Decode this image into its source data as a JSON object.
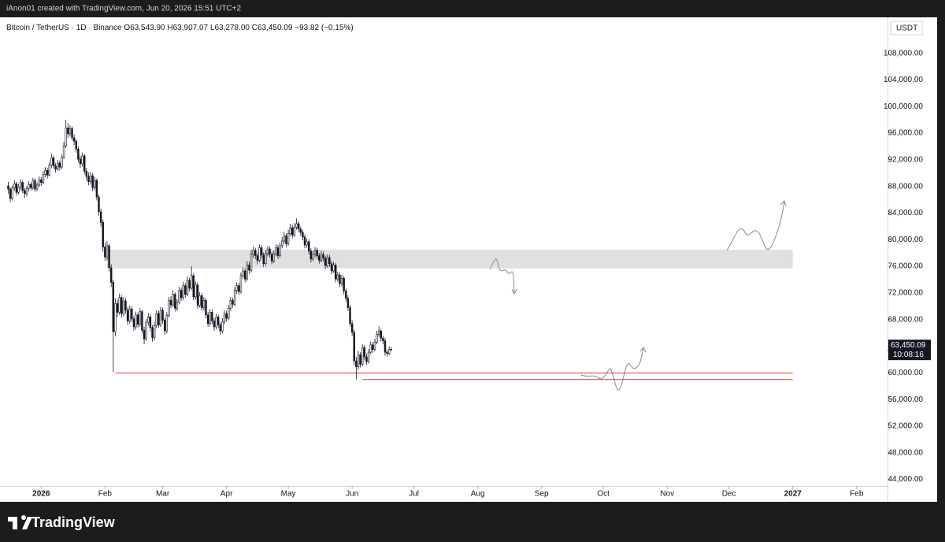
{
  "header": "iAnon01 created with TradingView.com, Jun 20, 2026 15:51 UTC+2",
  "footer": "TradingView",
  "chart_data": {
    "type": "candlestick",
    "legend": [
      "Bitcoin / TetherUS · 1D · Binance",
      "O63,543.90",
      "H63,907.07",
      "L63,278.00",
      "C63,450.09",
      "−93.82 (−0.15%)"
    ],
    "currency": "USDT",
    "start": "2025-12-16",
    "ohlc": [
      [
        88100,
        88700,
        86900,
        87600
      ],
      [
        87600,
        87900,
        85600,
        86200
      ],
      [
        86200,
        88200,
        85900,
        87800
      ],
      [
        87800,
        88900,
        87300,
        88400
      ],
      [
        88400,
        88700,
        86600,
        87100
      ],
      [
        87100,
        88400,
        86800,
        87900
      ],
      [
        87900,
        89100,
        87500,
        88600
      ],
      [
        88600,
        88900,
        87000,
        87400
      ],
      [
        87400,
        87800,
        86300,
        86900
      ],
      [
        86900,
        88100,
        86500,
        87700
      ],
      [
        87700,
        88800,
        87300,
        88300
      ],
      [
        88300,
        88600,
        87400,
        87800
      ],
      [
        87800,
        89300,
        87500,
        88900
      ],
      [
        88900,
        89200,
        87200,
        87600
      ],
      [
        87600,
        88600,
        87300,
        88200
      ],
      [
        88200,
        89500,
        87900,
        89000
      ],
      [
        89000,
        89400,
        88100,
        88600
      ],
      [
        88600,
        90300,
        88300,
        89800
      ],
      [
        89800,
        90900,
        89400,
        90400
      ],
      [
        90400,
        90800,
        89200,
        89700
      ],
      [
        89700,
        91700,
        89500,
        91200
      ],
      [
        91200,
        92900,
        90800,
        92300
      ],
      [
        92300,
        92600,
        90700,
        91100
      ],
      [
        91100,
        91500,
        90100,
        90600
      ],
      [
        90600,
        92000,
        90300,
        91500
      ],
      [
        91500,
        91900,
        90400,
        90900
      ],
      [
        90900,
        92800,
        90600,
        92400
      ],
      [
        92400,
        94700,
        92100,
        94100
      ],
      [
        94100,
        98000,
        93800,
        96800
      ],
      [
        96800,
        97500,
        95300,
        95900
      ],
      [
        95900,
        97200,
        95500,
        96700
      ],
      [
        96700,
        97000,
        94900,
        95300
      ],
      [
        95300,
        95800,
        94200,
        94800
      ],
      [
        94800,
        95100,
        93100,
        93600
      ],
      [
        93600,
        94000,
        91600,
        92100
      ],
      [
        92100,
        92600,
        90800,
        91400
      ],
      [
        91400,
        93100,
        91000,
        92600
      ],
      [
        92600,
        92900,
        89800,
        90300
      ],
      [
        90300,
        90800,
        88900,
        89500
      ],
      [
        89500,
        90100,
        88200,
        88700
      ],
      [
        88700,
        90200,
        88300,
        89600
      ],
      [
        89600,
        90000,
        87300,
        87800
      ],
      [
        87800,
        89400,
        87400,
        88900
      ],
      [
        88900,
        89200,
        85900,
        86400
      ],
      [
        86400,
        86800,
        83600,
        84200
      ],
      [
        84200,
        84700,
        82000,
        82600
      ],
      [
        82600,
        83000,
        78200,
        78900
      ],
      [
        78900,
        79600,
        76800,
        77400
      ],
      [
        77400,
        79800,
        76900,
        79100
      ],
      [
        79100,
        79400,
        75200,
        75800
      ],
      [
        75800,
        76300,
        72900,
        73600
      ],
      [
        73600,
        74000,
        60100,
        66200
      ],
      [
        66200,
        71200,
        65500,
        70400
      ],
      [
        70400,
        71000,
        68400,
        69100
      ],
      [
        69100,
        71900,
        68700,
        71300
      ],
      [
        71300,
        71700,
        68300,
        68900
      ],
      [
        68900,
        71400,
        68500,
        70800
      ],
      [
        70800,
        71200,
        68900,
        69400
      ],
      [
        69400,
        69900,
        67200,
        67800
      ],
      [
        67800,
        70100,
        67400,
        69600
      ],
      [
        69600,
        70000,
        67600,
        68100
      ],
      [
        68100,
        68500,
        66300,
        66900
      ],
      [
        66900,
        69200,
        66500,
        68700
      ],
      [
        68700,
        69100,
        66800,
        67300
      ],
      [
        67300,
        69700,
        66900,
        69200
      ],
      [
        69200,
        69500,
        65900,
        66400
      ],
      [
        66400,
        66900,
        64300,
        65100
      ],
      [
        65100,
        68100,
        64800,
        67600
      ],
      [
        67600,
        69000,
        67100,
        68400
      ],
      [
        68400,
        68800,
        66200,
        66800
      ],
      [
        66800,
        67200,
        64700,
        65300
      ],
      [
        65300,
        67600,
        64900,
        67100
      ],
      [
        67100,
        69400,
        66700,
        68900
      ],
      [
        68900,
        69300,
        66800,
        67200
      ],
      [
        67200,
        69900,
        66900,
        69400
      ],
      [
        69400,
        69800,
        67400,
        67900
      ],
      [
        67900,
        68300,
        65700,
        66300
      ],
      [
        66300,
        69100,
        65900,
        68600
      ],
      [
        68600,
        71400,
        68300,
        70900
      ],
      [
        70900,
        71500,
        69700,
        70200
      ],
      [
        70200,
        72400,
        69900,
        71800
      ],
      [
        71800,
        72100,
        69200,
        69700
      ],
      [
        69700,
        71100,
        69300,
        70600
      ],
      [
        70600,
        72900,
        70300,
        72400
      ],
      [
        72400,
        72800,
        70800,
        71300
      ],
      [
        71300,
        73700,
        70900,
        73100
      ],
      [
        73100,
        73500,
        71300,
        71800
      ],
      [
        71800,
        74500,
        71500,
        73900
      ],
      [
        73900,
        74300,
        72200,
        72700
      ],
      [
        72700,
        76000,
        72400,
        74600
      ],
      [
        74600,
        75000,
        70900,
        71400
      ],
      [
        71400,
        73700,
        71000,
        73200
      ],
      [
        73200,
        73600,
        69600,
        70100
      ],
      [
        70100,
        72100,
        69800,
        71600
      ],
      [
        71600,
        72000,
        69300,
        69800
      ],
      [
        69800,
        71400,
        69400,
        70900
      ],
      [
        70900,
        71200,
        68200,
        68700
      ],
      [
        68700,
        69100,
        66900,
        67400
      ],
      [
        67400,
        69600,
        67000,
        69100
      ],
      [
        69100,
        69500,
        67300,
        67800
      ],
      [
        67800,
        68200,
        66300,
        66900
      ],
      [
        66900,
        68900,
        66500,
        68400
      ],
      [
        68400,
        68800,
        66700,
        67200
      ],
      [
        67200,
        67600,
        65700,
        66300
      ],
      [
        66300,
        68200,
        65900,
        67700
      ],
      [
        67700,
        69400,
        67300,
        68900
      ],
      [
        68900,
        69300,
        67700,
        68200
      ],
      [
        68200,
        70200,
        67900,
        69700
      ],
      [
        69700,
        71400,
        69300,
        70900
      ],
      [
        70900,
        71300,
        69800,
        70300
      ],
      [
        70300,
        72900,
        70000,
        72400
      ],
      [
        72400,
        73600,
        71900,
        73100
      ],
      [
        73100,
        73500,
        71700,
        72200
      ],
      [
        72200,
        75100,
        71900,
        74600
      ],
      [
        74600,
        75900,
        74200,
        75300
      ],
      [
        75300,
        75700,
        73600,
        74100
      ],
      [
        74100,
        76800,
        73800,
        76200
      ],
      [
        76200,
        76700,
        74900,
        75400
      ],
      [
        75400,
        78400,
        75100,
        77800
      ],
      [
        77800,
        79000,
        77300,
        78400
      ],
      [
        78400,
        78800,
        77100,
        77600
      ],
      [
        77600,
        78000,
        76300,
        76900
      ],
      [
        76900,
        79300,
        76600,
        78800
      ],
      [
        78800,
        79200,
        77200,
        77700
      ],
      [
        77700,
        78100,
        75900,
        76400
      ],
      [
        76400,
        78400,
        76100,
        77900
      ],
      [
        77900,
        79100,
        77500,
        78600
      ],
      [
        78600,
        79000,
        77300,
        77800
      ],
      [
        77800,
        78200,
        76300,
        76800
      ],
      [
        76800,
        78400,
        76500,
        77900
      ],
      [
        77900,
        79300,
        77500,
        78800
      ],
      [
        78800,
        79200,
        77100,
        77600
      ],
      [
        77600,
        79600,
        77300,
        79100
      ],
      [
        79100,
        80400,
        78700,
        79800
      ],
      [
        79800,
        81200,
        79400,
        80600
      ],
      [
        80600,
        81000,
        78900,
        79400
      ],
      [
        79400,
        81500,
        79100,
        80900
      ],
      [
        80900,
        82400,
        80500,
        81800
      ],
      [
        81800,
        82200,
        80200,
        80700
      ],
      [
        80700,
        82500,
        80400,
        81900
      ],
      [
        81900,
        83200,
        81500,
        82400
      ],
      [
        82400,
        82800,
        81100,
        81600
      ],
      [
        81600,
        82000,
        80600,
        81100
      ],
      [
        81100,
        81500,
        79900,
        80400
      ],
      [
        80400,
        80800,
        78700,
        79200
      ],
      [
        79200,
        80200,
        78800,
        79700
      ],
      [
        79700,
        80100,
        77800,
        78300
      ],
      [
        78300,
        78700,
        76600,
        77100
      ],
      [
        77100,
        78300,
        76800,
        77800
      ],
      [
        77800,
        78900,
        77400,
        78400
      ],
      [
        78400,
        78800,
        77100,
        77600
      ],
      [
        77600,
        78000,
        76400,
        76900
      ],
      [
        76900,
        78300,
        76600,
        77800
      ],
      [
        77800,
        78200,
        76700,
        77200
      ],
      [
        77200,
        77600,
        75600,
        76100
      ],
      [
        76100,
        77800,
        75800,
        77300
      ],
      [
        77300,
        77700,
        75900,
        76400
      ],
      [
        76400,
        76800,
        74800,
        75300
      ],
      [
        75300,
        76700,
        75000,
        76200
      ],
      [
        76200,
        76500,
        73600,
        74100
      ],
      [
        74100,
        75200,
        73700,
        74700
      ],
      [
        74700,
        75100,
        72900,
        73400
      ],
      [
        73400,
        74700,
        73000,
        74200
      ],
      [
        74200,
        74500,
        71800,
        72300
      ],
      [
        72300,
        72700,
        70700,
        71200
      ],
      [
        71200,
        71600,
        69300,
        69800
      ],
      [
        69800,
        70200,
        66900,
        67400
      ],
      [
        67400,
        67900,
        65500,
        66100
      ],
      [
        66100,
        66500,
        61200,
        61800
      ],
      [
        61800,
        62400,
        59000,
        60900
      ],
      [
        60900,
        63300,
        60500,
        62700
      ],
      [
        62700,
        63100,
        60800,
        61300
      ],
      [
        61300,
        64300,
        61000,
        63800
      ],
      [
        63800,
        64200,
        61900,
        62400
      ],
      [
        62400,
        62900,
        61200,
        61700
      ],
      [
        61700,
        63600,
        61400,
        63100
      ],
      [
        63100,
        64700,
        62800,
        64200
      ],
      [
        64200,
        64600,
        63000,
        63500
      ],
      [
        63500,
        65100,
        63200,
        64600
      ],
      [
        64600,
        66300,
        64300,
        65800
      ],
      [
        65800,
        67000,
        65400,
        66300
      ],
      [
        66300,
        66600,
        64700,
        65200
      ],
      [
        65200,
        65600,
        64300,
        64800
      ],
      [
        64800,
        65200,
        62600,
        63100
      ],
      [
        63100,
        63500,
        62400,
        62900
      ],
      [
        62900,
        64000,
        62600,
        63500
      ],
      [
        63543.9,
        63907.07,
        63278.0,
        63450.09
      ]
    ],
    "up_color": "#ffffff",
    "down_color": "#131722",
    "edge_color": "#131722",
    "last_price": {
      "value": 63450.09,
      "label": "63,450.09"
    },
    "countdown": "10:08:16",
    "zones": [
      {
        "from": "2026-02-02",
        "to": "2027-01-01",
        "low": 75700,
        "high": 78500,
        "color": "#e0e0e0"
      }
    ],
    "levels": [
      {
        "from": "2026-02-06",
        "to": "2027-01-01",
        "value": 60000,
        "color": "#e53935"
      },
      {
        "from": "2026-06-06",
        "to": "2027-01-01",
        "value": 59000,
        "color": "#e53935"
      }
    ],
    "xlim": [
      "2025-12-12",
      "2027-02-16"
    ],
    "xticks": [
      {
        "value": "2026-01-01",
        "label": "2026"
      },
      {
        "value": "2026-02-01",
        "label": "Feb"
      },
      {
        "value": "2026-03-01",
        "label": "Mar"
      },
      {
        "value": "2026-04-01",
        "label": "Apr"
      },
      {
        "value": "2026-05-01",
        "label": "May"
      },
      {
        "value": "2026-06-01",
        "label": "Jun"
      },
      {
        "value": "2026-07-01",
        "label": "Jul"
      },
      {
        "value": "2026-08-01",
        "label": "Aug"
      },
      {
        "value": "2026-09-01",
        "label": "Sep"
      },
      {
        "value": "2026-10-01",
        "label": "Oct"
      },
      {
        "value": "2026-11-01",
        "label": "Nov"
      },
      {
        "value": "2026-12-01",
        "label": "Dec"
      },
      {
        "value": "2027-01-01",
        "label": "2027"
      },
      {
        "value": "2027-02-01",
        "label": "Feb"
      }
    ],
    "ylim": [
      43000,
      113400
    ],
    "yticks": [
      {
        "value": 44000,
        "label": "44,000.00"
      },
      {
        "value": 48000,
        "label": "48,000.00"
      },
      {
        "value": 52000,
        "label": "52,000.00"
      },
      {
        "value": 56000,
        "label": "56,000.00"
      },
      {
        "value": 60000,
        "label": "60,000.00"
      },
      {
        "value": 64000,
        "label": "64,000.00"
      },
      {
        "value": 68000,
        "label": "68,000.00"
      },
      {
        "value": 72000,
        "label": "72,000.00"
      },
      {
        "value": 76000,
        "label": "76,000.00"
      },
      {
        "value": 80000,
        "label": "80,000.00"
      },
      {
        "value": 84000,
        "label": "84,000.00"
      },
      {
        "value": 88000,
        "label": "88,000.00"
      },
      {
        "value": 92000,
        "label": "92,000.00"
      },
      {
        "value": 96000,
        "label": "96,000.00"
      },
      {
        "value": 100000,
        "label": "100,000.00"
      },
      {
        "value": 104000,
        "label": "104,000.00"
      },
      {
        "value": 108000,
        "label": "108,000.00"
      }
    ]
  }
}
